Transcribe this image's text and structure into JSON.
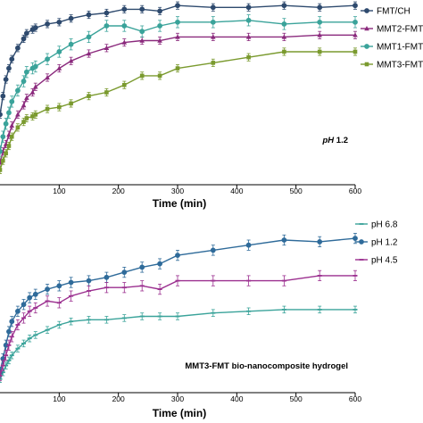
{
  "chart_data": [
    {
      "type": "line",
      "xlabel": "Time (min)",
      "annotation": {
        "italic": "pH",
        "rest": " 1.2"
      },
      "x_ticks": [
        "100",
        "200",
        "300",
        "400",
        "500",
        "600"
      ],
      "xlim": [
        0,
        600
      ],
      "ylim": [
        0,
        100
      ],
      "legend_position": "top-right",
      "series": [
        {
          "name": "FMT/CH",
          "color": "#2e4a6e",
          "marker": "circle",
          "x": [
            0,
            5,
            10,
            15,
            20,
            30,
            40,
            45,
            55,
            60,
            80,
            100,
            120,
            150,
            180,
            210,
            240,
            270,
            300,
            360,
            420,
            480,
            540,
            600
          ],
          "y": [
            38,
            48,
            57,
            63,
            68,
            74,
            79,
            82,
            84,
            85,
            87,
            88,
            90,
            92,
            93,
            95,
            95,
            94,
            97,
            96,
            96,
            97,
            96,
            97
          ],
          "err": [
            2,
            2,
            2,
            2,
            2,
            2,
            2,
            2,
            2,
            2,
            2,
            2,
            2,
            2,
            2,
            2,
            2,
            2,
            2,
            2,
            2,
            2,
            2,
            2
          ]
        },
        {
          "name": "MMT2-FMT",
          "color": "#8b2a7d",
          "marker": "triangle",
          "x": [
            0,
            5,
            10,
            15,
            20,
            30,
            40,
            45,
            55,
            60,
            80,
            100,
            120,
            150,
            180,
            210,
            240,
            270,
            300,
            360,
            420,
            480,
            540,
            600
          ],
          "y": [
            12,
            18,
            22,
            27,
            32,
            38,
            43,
            47,
            50,
            53,
            58,
            63,
            67,
            71,
            74,
            77,
            78,
            78,
            80,
            80,
            80,
            80,
            81,
            81
          ],
          "err": [
            2,
            2,
            2,
            2,
            2,
            2,
            2,
            2,
            2,
            2,
            2,
            2,
            2,
            2,
            2,
            2,
            2,
            2,
            2,
            2,
            2,
            2,
            2,
            2
          ]
        },
        {
          "name": "MMT1-FMT",
          "color": "#3aa39a",
          "marker": "circle",
          "x": [
            0,
            5,
            10,
            15,
            20,
            30,
            40,
            45,
            55,
            60,
            80,
            100,
            120,
            150,
            180,
            210,
            240,
            270,
            300,
            360,
            420,
            480,
            540,
            600
          ],
          "y": [
            18,
            26,
            33,
            39,
            45,
            51,
            56,
            61,
            63,
            64,
            68,
            72,
            76,
            80,
            86,
            86,
            83,
            86,
            88,
            88,
            89,
            87,
            88,
            88
          ],
          "err": [
            3,
            3,
            3,
            3,
            3,
            3,
            3,
            3,
            3,
            3,
            3,
            3,
            3,
            3,
            3,
            3,
            3,
            3,
            3,
            3,
            3,
            3,
            3,
            3
          ]
        },
        {
          "name": "MMT3-FMT",
          "color": "#7a9a2e",
          "marker": "square",
          "x": [
            0,
            5,
            10,
            15,
            20,
            30,
            40,
            45,
            55,
            60,
            80,
            100,
            120,
            150,
            180,
            210,
            240,
            270,
            300,
            360,
            420,
            480,
            540,
            600
          ],
          "y": [
            8,
            13,
            17,
            21,
            26,
            31,
            34,
            36,
            37,
            38,
            41,
            42,
            44,
            48,
            50,
            54,
            59,
            59,
            63,
            66,
            69,
            72,
            72,
            72
          ],
          "err": [
            2,
            2,
            2,
            2,
            2,
            2,
            2,
            2,
            2,
            2,
            2,
            2,
            2,
            2,
            2,
            2,
            2,
            2,
            2,
            2,
            2,
            2,
            2,
            2
          ]
        }
      ]
    },
    {
      "type": "line",
      "xlabel": "Time (min)",
      "annotation": {
        "italic": "",
        "rest": "MMT3-FMT bio-nanocomposite hydrogel"
      },
      "x_ticks": [
        "100",
        "200",
        "300",
        "400",
        "500",
        "600"
      ],
      "xlim": [
        0,
        600
      ],
      "ylim": [
        0,
        100
      ],
      "legend_position": "top-right",
      "series": [
        {
          "name": "pH 6.8",
          "color": "#3aa39a",
          "marker": "dash",
          "x": [
            0,
            5,
            10,
            15,
            20,
            30,
            40,
            50,
            60,
            80,
            100,
            120,
            150,
            180,
            210,
            240,
            270,
            300,
            360,
            420,
            480,
            540,
            600
          ],
          "y": [
            8,
            12,
            16,
            19,
            22,
            26,
            29,
            32,
            34,
            37,
            40,
            42,
            43,
            43,
            44,
            45,
            45,
            45,
            47,
            48,
            49,
            49,
            49
          ],
          "err": [
            2,
            2,
            2,
            2,
            2,
            2,
            2,
            2,
            2,
            2,
            2,
            2,
            2,
            2,
            2,
            2,
            2,
            2,
            2,
            2,
            2,
            2,
            2
          ]
        },
        {
          "name": "pH 1.2",
          "color": "#2f6b9a",
          "marker": "circle",
          "x": [
            0,
            5,
            10,
            15,
            20,
            30,
            40,
            50,
            60,
            80,
            100,
            120,
            150,
            180,
            210,
            240,
            270,
            300,
            360,
            420,
            480,
            540,
            600
          ],
          "y": [
            12,
            20,
            28,
            36,
            42,
            48,
            52,
            56,
            58,
            61,
            63,
            65,
            66,
            68,
            71,
            74,
            76,
            81,
            84,
            87,
            90,
            89,
            91
          ],
          "err": [
            3,
            3,
            3,
            3,
            3,
            3,
            3,
            3,
            3,
            3,
            3,
            3,
            3,
            3,
            3,
            3,
            3,
            3,
            3,
            3,
            3,
            3,
            3
          ]
        },
        {
          "name": "pH 4.5",
          "color": "#9b2f8f",
          "marker": "dash",
          "x": [
            0,
            5,
            10,
            15,
            20,
            30,
            40,
            50,
            60,
            80,
            100,
            120,
            150,
            180,
            210,
            240,
            270,
            300,
            360,
            420,
            480,
            540,
            600
          ],
          "y": [
            10,
            16,
            22,
            28,
            33,
            40,
            44,
            48,
            50,
            54,
            53,
            57,
            60,
            62,
            62,
            63,
            61,
            66,
            66,
            66,
            66,
            69,
            69
          ],
          "err": [
            3,
            3,
            3,
            3,
            3,
            3,
            3,
            3,
            3,
            3,
            3,
            3,
            3,
            3,
            3,
            3,
            3,
            3,
            3,
            3,
            3,
            3,
            3
          ]
        }
      ]
    }
  ]
}
